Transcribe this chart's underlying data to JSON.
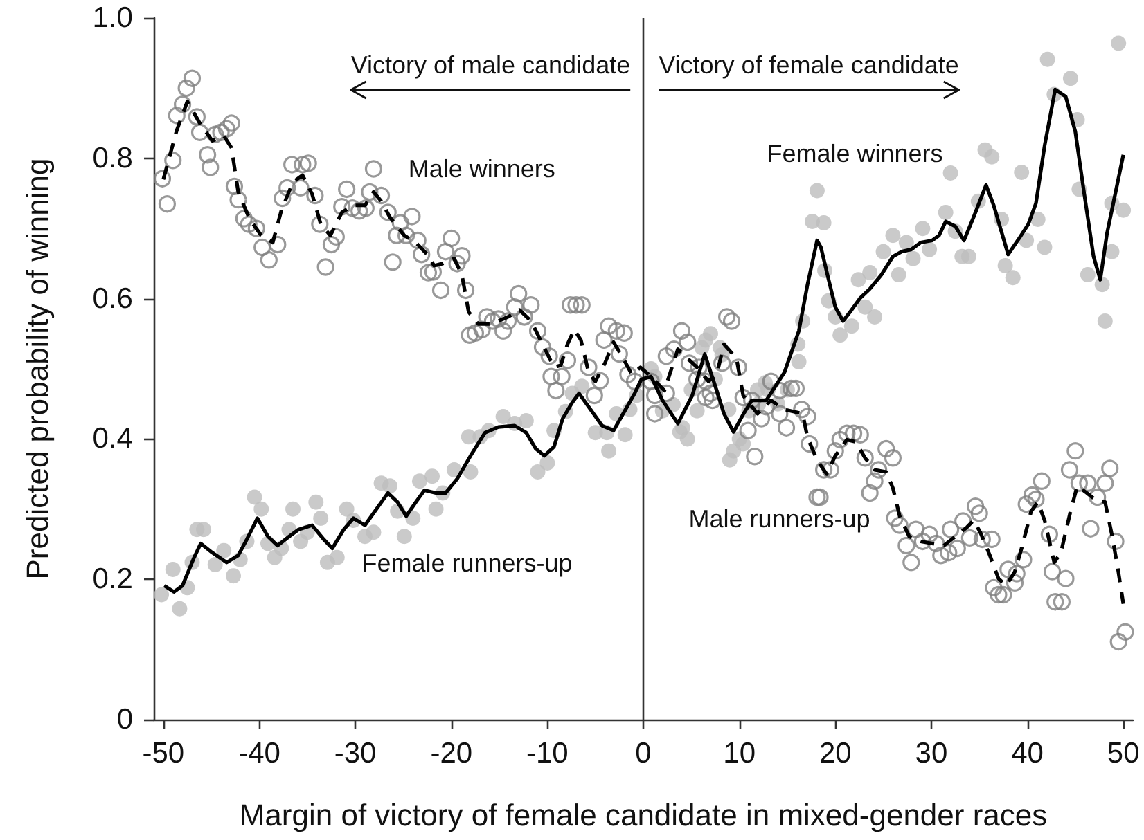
{
  "chart_data": {
    "type": "scatter",
    "xlabel": "Margin of victory of female candidate in mixed-gender races",
    "ylabel": "Predicted probability of winning",
    "xlim": [
      -51,
      51
    ],
    "ylim": [
      0,
      1
    ],
    "xticks": [
      -50,
      -40,
      -30,
      -20,
      -10,
      0,
      10,
      20,
      30,
      40,
      50
    ],
    "yticks": [
      0,
      0.2,
      0.4,
      0.6,
      0.8,
      {
        "value": 1,
        "label": "1.0"
      }
    ],
    "grid": false,
    "ref_lines": [
      {
        "axis": "x",
        "value": 0,
        "color": "#333333"
      }
    ],
    "annotations": [
      "Victory of male candidate",
      "Victory of female candidate",
      "Male winners",
      "Female winners",
      "Female runners-up",
      "Male runners-up"
    ],
    "series": [
      {
        "marker": "circle",
        "color": "#bdbdbd",
        "x": [
          -50.2,
          -49.0,
          -48.3,
          -47.5,
          -47.0,
          -46.5,
          -45.8,
          -44.6,
          -43.7,
          -42.7,
          -42.0,
          -41.3,
          -40.5,
          -39.8,
          -39.1,
          -38.4,
          -37.7,
          -36.9,
          -36.5,
          -35.7,
          -35.0,
          -34.1,
          -33.6,
          -32.9,
          -31.9,
          -30.9,
          -30.2,
          -29.0,
          -28.1,
          -27.3,
          -26.4,
          -25.6,
          -24.9,
          -24.0,
          -23.3,
          -22.0,
          -21.6,
          -20.9,
          -19.7,
          -18.2,
          -18.0,
          -17.0,
          -16.1,
          -14.6,
          -13.4,
          -12.2,
          -11.0,
          -10.0,
          -9.3,
          -8.1,
          -7.4,
          -6.4,
          -5.0,
          -3.8,
          -3.6,
          -2.8,
          -1.9,
          -1.4,
          -0.7,
          0.8,
          1.2,
          2.0,
          3.1,
          4.1,
          5.0,
          5.6,
          6.5,
          7.5,
          8.2,
          8.9,
          9.4,
          10.4,
          11.0,
          12.0,
          13.0,
          14.0,
          15.0,
          16.1,
          16.6,
          17.6,
          18.1,
          18.8,
          18.9,
          19.3,
          20.0,
          20.5,
          21.7,
          22.4,
          23.1,
          23.6,
          24.1,
          25.0,
          26.0,
          26.6,
          27.4,
          28.1,
          29.1,
          29.8,
          31.5,
          32.0,
          32.5,
          33.2,
          33.9,
          34.9,
          35.6,
          36.3,
          37.3,
          37.7,
          38.5,
          39.4,
          39.9,
          41.1,
          41.8,
          42.1,
          42.8,
          44.5,
          45.2,
          45.4,
          46.3,
          47.8,
          48.1,
          48.8,
          48.8,
          49.5,
          50.0,
          3.8,
          4.6,
          6.1,
          7.0,
          8.0,
          9.0,
          10.0,
          11.9,
          12.7,
          16.2
        ],
        "values": [
          0.178,
          0.214,
          0.158,
          0.188,
          0.224,
          0.271,
          0.271,
          0.221,
          0.241,
          0.205,
          0.228,
          0.254,
          0.317,
          0.3,
          0.251,
          0.231,
          0.244,
          0.271,
          0.3,
          0.254,
          0.267,
          0.31,
          0.287,
          0.224,
          0.231,
          0.3,
          0.284,
          0.261,
          0.267,
          0.337,
          0.333,
          0.297,
          0.261,
          0.287,
          0.34,
          0.347,
          0.3,
          0.323,
          0.356,
          0.403,
          0.353,
          0.403,
          0.412,
          0.432,
          0.422,
          0.426,
          0.353,
          0.366,
          0.412,
          0.439,
          0.465,
          0.475,
          0.409,
          0.409,
          0.383,
          0.436,
          0.406,
          0.442,
          0.462,
          0.5,
          0.489,
          0.44,
          0.449,
          0.416,
          0.47,
          0.44,
          0.541,
          0.485,
          0.52,
          0.442,
          0.383,
          0.393,
          0.44,
          0.45,
          0.47,
          0.45,
          0.47,
          0.535,
          0.568,
          0.71,
          0.754,
          0.708,
          0.64,
          0.597,
          0.574,
          0.548,
          0.561,
          0.627,
          0.588,
          0.637,
          0.574,
          0.667,
          0.69,
          0.634,
          0.68,
          0.657,
          0.7,
          0.67,
          0.723,
          0.779,
          0.696,
          0.66,
          0.66,
          0.739,
          0.812,
          0.802,
          0.713,
          0.647,
          0.63,
          0.78,
          0.683,
          0.713,
          0.673,
          0.941,
          0.891,
          0.914,
          0.855,
          0.756,
          0.634,
          0.62,
          0.568,
          0.667,
          0.736,
          0.964,
          0.726,
          0.41,
          0.4,
          0.53,
          0.55,
          0.53,
          0.37,
          0.4,
          0.47,
          0.48,
          0.51
        ]
      },
      {
        "marker": "circle",
        "color": "#7f7f7f",
        "x": [
          -50.1,
          -49.6,
          -49.0,
          -48.6,
          -48.0,
          -47.6,
          -47.0,
          -46.5,
          -46.2,
          -45.4,
          -45.1,
          -44.6,
          -44.0,
          -43.4,
          -42.9,
          -42.6,
          -42.2,
          -41.6,
          -41.1,
          -40.3,
          -39.7,
          -39.0,
          -38.1,
          -37.6,
          -37.1,
          -36.6,
          -35.7,
          -35.5,
          -34.9,
          -34.2,
          -33.7,
          -33.1,
          -32.5,
          -32.0,
          -31.4,
          -30.9,
          -30.3,
          -29.6,
          -28.9,
          -28.5,
          -28.1,
          -27.3,
          -26.6,
          -26.1,
          -25.7,
          -25.3,
          -24.7,
          -24.1,
          -23.5,
          -23.1,
          -22.4,
          -21.9,
          -21.1,
          -20.6,
          -20.0,
          -19.4,
          -18.9,
          -18.5,
          -18.1,
          -17.5,
          -16.8,
          -16.3,
          -15.7,
          -15.1,
          -14.6,
          -14.1,
          -13.4,
          -13.0,
          -12.4,
          -11.7,
          -11.0,
          -10.5,
          -9.8,
          -9.6,
          -9.1,
          -8.5,
          -7.9,
          -7.6,
          -7.0,
          -6.4,
          -5.7,
          -5.1,
          -4.5,
          -4.1,
          -3.6,
          -2.8,
          -2.5,
          -2.0,
          -1.6,
          -0.9,
          0.8,
          1.2,
          1.2,
          2.4,
          2.4,
          3.2,
          4.0,
          4.6,
          4.8,
          5.6,
          5.8,
          6.5,
          6.5,
          7.0,
          7.2,
          8.2,
          8.7,
          9.2,
          9.9,
          10.4,
          10.9,
          11.3,
          11.6,
          12.3,
          12.8,
          13.3,
          14.2,
          14.2,
          14.9,
          15.4,
          15.9,
          16.5,
          17.1,
          17.3,
          18.1,
          18.4,
          18.8,
          19.5,
          20.0,
          20.5,
          21.2,
          21.9,
          22.6,
          23.1,
          23.6,
          24.1,
          24.5,
          25.3,
          26.0,
          26.2,
          26.7,
          27.4,
          27.9,
          28.4,
          29.1,
          29.8,
          30.5,
          31.0,
          31.8,
          32.0,
          32.7,
          33.3,
          34.0,
          34.6,
          35.0,
          35.3,
          36.3,
          36.5,
          37.0,
          37.5,
          38.0,
          38.7,
          38.9,
          39.6,
          39.9,
          40.5,
          40.9,
          41.5,
          42.3,
          42.6,
          42.9,
          43.6,
          44.0,
          44.4,
          45.0,
          45.4,
          46.3,
          46.6,
          47.3,
          48.1,
          48.6,
          49.2,
          49.5,
          50.2
        ],
        "values": [
          0.771,
          0.735,
          0.797,
          0.861,
          0.877,
          0.9,
          0.914,
          0.859,
          0.837,
          0.805,
          0.787,
          0.834,
          0.837,
          0.842,
          0.85,
          0.76,
          0.741,
          0.714,
          0.706,
          0.7,
          0.673,
          0.655,
          0.677,
          0.743,
          0.758,
          0.791,
          0.758,
          0.791,
          0.793,
          0.747,
          0.706,
          0.645,
          0.677,
          0.688,
          0.731,
          0.756,
          0.729,
          0.725,
          0.729,
          0.752,
          0.785,
          0.747,
          0.723,
          0.652,
          0.69,
          0.708,
          0.69,
          0.717,
          0.683,
          0.663,
          0.637,
          0.638,
          0.612,
          0.667,
          0.686,
          0.65,
          0.661,
          0.612,
          0.548,
          0.551,
          0.556,
          0.574,
          0.568,
          0.571,
          0.554,
          0.568,
          0.588,
          0.607,
          0.574,
          0.591,
          0.554,
          0.531,
          0.518,
          0.489,
          0.469,
          0.489,
          0.512,
          0.591,
          0.591,
          0.591,
          0.502,
          0.462,
          0.483,
          0.541,
          0.561,
          0.554,
          0.521,
          0.551,
          0.492,
          0.482,
          0.482,
          0.462,
          0.436,
          0.518,
          0.465,
          0.528,
          0.554,
          0.538,
          0.508,
          0.485,
          0.502,
          0.482,
          0.459,
          0.465,
          0.455,
          0.508,
          0.574,
          0.568,
          0.502,
          0.459,
          0.412,
          0.455,
          0.375,
          0.429,
          0.446,
          0.482,
          0.469,
          0.436,
          0.416,
          0.472,
          0.472,
          0.442,
          0.432,
          0.393,
          0.317,
          0.317,
          0.356,
          0.356,
          0.383,
          0.399,
          0.408,
          0.408,
          0.406,
          0.373,
          0.323,
          0.34,
          0.356,
          0.386,
          0.373,
          0.287,
          0.277,
          0.248,
          0.224,
          0.271,
          0.254,
          0.264,
          0.251,
          0.234,
          0.238,
          0.271,
          0.244,
          0.283,
          0.259,
          0.304,
          0.294,
          0.257,
          0.257,
          0.188,
          0.178,
          0.178,
          0.214,
          0.195,
          0.208,
          0.228,
          0.307,
          0.32,
          0.314,
          0.34,
          0.264,
          0.211,
          0.168,
          0.168,
          0.201,
          0.356,
          0.383,
          0.337,
          0.337,
          0.272,
          0.317,
          0.337,
          0.358,
          0.254,
          0.111,
          0.125
        ]
      },
      {
        "type": "line",
        "marker": "none",
        "line_style": "solid",
        "color": "#000000",
        "x": [
          -49.9,
          -48.9,
          -48.0,
          -46.8,
          -46.1,
          -44.9,
          -43.4,
          -42.2,
          -41.3,
          -40.2,
          -39.1,
          -38.1,
          -36.9,
          -35.9,
          -34.5,
          -33.3,
          -32.4,
          -31.2,
          -30.2,
          -29.0,
          -27.8,
          -26.6,
          -25.6,
          -24.7,
          -23.7,
          -22.8,
          -21.6,
          -20.6,
          -19.4,
          -18.0,
          -16.5,
          -15.1,
          -13.4,
          -12.2,
          -11.2,
          -10.3,
          -9.3,
          -8.4,
          -7.4,
          -6.7,
          -5.5,
          -4.3,
          -3.1,
          -2.1,
          -0.9,
          -0.2,
          0.8,
          2.0,
          3.6,
          5.1,
          6.4,
          7.5,
          8.4,
          9.4,
          10.4,
          11.3,
          12.8,
          14.7,
          16.2,
          17.1,
          18.1,
          18.5,
          19.3,
          20.0,
          20.8,
          21.7,
          22.6,
          23.6,
          24.8,
          26.0,
          26.9,
          27.9,
          28.9,
          30.1,
          30.8,
          31.5,
          32.5,
          33.4,
          34.4,
          35.7,
          36.5,
          38.0,
          39.2,
          40.1,
          40.9,
          41.8,
          42.9,
          44.0,
          45.0,
          45.9,
          46.9,
          47.6,
          48.3,
          49.0,
          50.0
        ],
        "values": [
          0.191,
          0.182,
          0.191,
          0.231,
          0.251,
          0.238,
          0.224,
          0.234,
          0.257,
          0.287,
          0.261,
          0.248,
          0.261,
          0.271,
          0.277,
          0.257,
          0.244,
          0.271,
          0.287,
          0.277,
          0.3,
          0.323,
          0.31,
          0.29,
          0.31,
          0.327,
          0.323,
          0.323,
          0.343,
          0.376,
          0.409,
          0.417,
          0.419,
          0.409,
          0.386,
          0.376,
          0.389,
          0.429,
          0.452,
          0.465,
          0.442,
          0.419,
          0.412,
          0.436,
          0.465,
          0.485,
          0.489,
          0.455,
          0.422,
          0.462,
          0.521,
          0.475,
          0.436,
          0.41,
          0.435,
          0.455,
          0.455,
          0.495,
          0.554,
          0.62,
          0.683,
          0.673,
          0.627,
          0.588,
          0.568,
          0.584,
          0.601,
          0.614,
          0.634,
          0.66,
          0.667,
          0.67,
          0.68,
          0.683,
          0.69,
          0.71,
          0.703,
          0.683,
          0.716,
          0.762,
          0.733,
          0.663,
          0.687,
          0.706,
          0.736,
          0.818,
          0.898,
          0.888,
          0.838,
          0.752,
          0.66,
          0.627,
          0.693,
          0.739,
          0.805
        ]
      },
      {
        "type": "line",
        "marker": "none",
        "line_style": "dashed",
        "color": "#000000",
        "x": [
          -50.0,
          -48.6,
          -47.5,
          -46.2,
          -44.9,
          -43.7,
          -42.9,
          -42.2,
          -41.0,
          -39.8,
          -38.6,
          -37.7,
          -36.5,
          -35.5,
          -34.5,
          -33.6,
          -32.6,
          -31.4,
          -30.2,
          -29.0,
          -28.1,
          -27.3,
          -26.4,
          -24.9,
          -23.7,
          -22.5,
          -21.8,
          -20.9,
          -19.7,
          -18.9,
          -18.2,
          -17.2,
          -15.8,
          -14.1,
          -12.9,
          -11.7,
          -10.5,
          -9.3,
          -8.6,
          -7.9,
          -7.2,
          -6.5,
          -5.7,
          -5.0,
          -4.0,
          -3.1,
          -2.1,
          -1.2,
          -0.3,
          0.8,
          2.2,
          3.6,
          4.6,
          5.6,
          6.8,
          7.7,
          8.4,
          9.7,
          10.4,
          11.9,
          13.3,
          14.7,
          16.6,
          17.1,
          18.1,
          19.1,
          20.0,
          21.2,
          22.1,
          23.1,
          24.1,
          25.3,
          26.0,
          26.7,
          27.7,
          28.9,
          30.1,
          31.3,
          32.5,
          33.7,
          34.4,
          35.1,
          36.1,
          37.0,
          37.8,
          38.7,
          39.4,
          40.4,
          41.1,
          41.8,
          42.8,
          43.5,
          44.5,
          45.2,
          46.2,
          47.1,
          48.1,
          48.8,
          49.4,
          50.0
        ],
        "values": [
          0.77,
          0.84,
          0.881,
          0.85,
          0.825,
          0.832,
          0.815,
          0.752,
          0.713,
          0.69,
          0.68,
          0.726,
          0.766,
          0.776,
          0.749,
          0.706,
          0.69,
          0.723,
          0.733,
          0.733,
          0.752,
          0.739,
          0.716,
          0.69,
          0.68,
          0.663,
          0.647,
          0.65,
          0.657,
          0.634,
          0.581,
          0.564,
          0.564,
          0.574,
          0.584,
          0.568,
          0.535,
          0.502,
          0.505,
          0.535,
          0.556,
          0.541,
          0.495,
          0.482,
          0.508,
          0.538,
          0.515,
          0.492,
          0.502,
          0.489,
          0.469,
          0.528,
          0.515,
          0.502,
          0.482,
          0.495,
          0.535,
          0.515,
          0.462,
          0.436,
          0.455,
          0.442,
          0.436,
          0.402,
          0.37,
          0.35,
          0.376,
          0.399,
          0.396,
          0.373,
          0.356,
          0.353,
          0.33,
          0.29,
          0.261,
          0.254,
          0.251,
          0.248,
          0.261,
          0.274,
          0.284,
          0.267,
          0.234,
          0.201,
          0.191,
          0.211,
          0.244,
          0.297,
          0.31,
          0.284,
          0.224,
          0.238,
          0.297,
          0.333,
          0.323,
          0.313,
          0.31,
          0.264,
          0.218,
          0.165
        ]
      }
    ]
  }
}
